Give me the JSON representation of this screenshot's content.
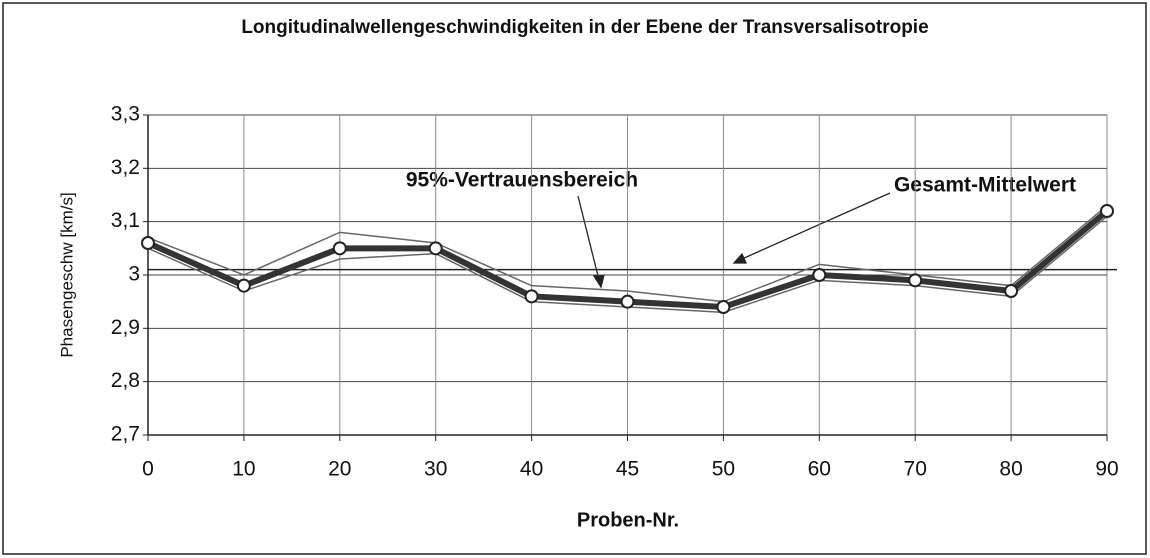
{
  "chart_data": {
    "type": "line",
    "title": "Longitudinalwellengeschwindigkeiten in der Ebene der Transversalisotropie",
    "x_label": "Proben-Nr.",
    "y_label": "Phasengeschw [km/s]",
    "categories": [
      "0",
      "10",
      "20",
      "30",
      "40",
      "45",
      "50",
      "60",
      "70",
      "80",
      "90"
    ],
    "series": [
      {
        "color": "#333333",
        "values": [
          3.06,
          2.98,
          3.05,
          3.05,
          2.96,
          2.95,
          2.94,
          3.0,
          2.99,
          2.97,
          3.12
        ]
      },
      {
        "color": "#666666",
        "values": [
          3.07,
          3.0,
          3.08,
          3.06,
          2.98,
          2.97,
          2.95,
          3.02,
          3.0,
          2.98,
          3.13
        ]
      },
      {
        "color": "#666666",
        "values": [
          3.05,
          2.97,
          3.03,
          3.04,
          2.95,
          2.94,
          2.93,
          2.99,
          2.98,
          2.96,
          3.11
        ]
      }
    ],
    "mean_line": 3.01,
    "annotations": [
      "95%-Vertrauensbereich",
      "Gesamt-Mittelwert"
    ],
    "ylim": [
      2.7,
      3.3
    ],
    "yticks": [
      {
        "value": 2.7,
        "label": "2,7"
      },
      {
        "value": 2.8,
        "label": "2,8"
      },
      {
        "value": 2.9,
        "label": "2,9"
      },
      3,
      {
        "value": 3.1,
        "label": "3,1"
      },
      {
        "value": 3.2,
        "label": "3,2"
      },
      {
        "value": 3.3,
        "label": "3,3"
      }
    ],
    "grid": true
  }
}
